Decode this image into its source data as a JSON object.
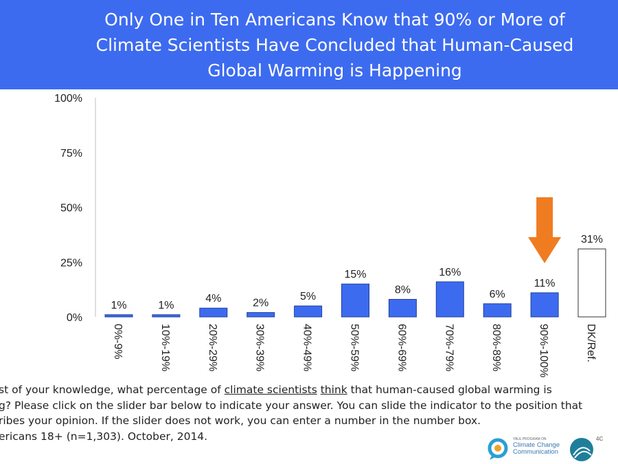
{
  "header": {
    "title_lines": [
      "Only One in Ten Americans Know that 90% or More of",
      "Climate Scientists Have Concluded that Human-Caused",
      "Global Warming is Happening"
    ]
  },
  "chart_data": {
    "type": "bar",
    "categories": [
      "0%-9%",
      "10%-19%",
      "20%-29%",
      "30%-39%",
      "40%-49%",
      "50%-59%",
      "60%-69%",
      "70%-79%",
      "80%-89%",
      "90%-100%",
      "DK/Ref."
    ],
    "values": [
      1,
      1,
      4,
      2,
      5,
      15,
      8,
      16,
      6,
      11,
      31
    ],
    "value_labels": [
      "1%",
      "1%",
      "4%",
      "2%",
      "5%",
      "15%",
      "8%",
      "16%",
      "6%",
      "11%",
      "31%"
    ],
    "ylim": [
      0,
      100
    ],
    "yticks": [
      0,
      25,
      50,
      75,
      100
    ],
    "ytick_labels": [
      "0%",
      "25%",
      "50%",
      "75%",
      "100%"
    ],
    "bar_color": "#3d6bf0",
    "highlight_bar_color": "#ffffff",
    "arrow_color": "#f07c22",
    "highlight_category": "90%-100%",
    "grid": false
  },
  "footer": {
    "question_prefix": "st of your knowledge, what percentage of ",
    "question_underlined": "climate scientists",
    "question_mid": " ",
    "question_underlined_2": "think",
    "question_suffix": " that human-caused global warming is",
    "line2": "g? Please click on the slider bar below to indicate your answer. You can slide the indicator to the position that",
    "line3": "ribes your opinion. If the slider does not work, you can enter a number in the number box.",
    "line4": "ericans 18+ (n=1,303). October, 2014."
  },
  "logos": {
    "ycc_small": "YALE PROGRAM ON",
    "ycc_line1": "Climate Change",
    "ycc_line2": "Communication",
    "label_4c": "4C"
  }
}
